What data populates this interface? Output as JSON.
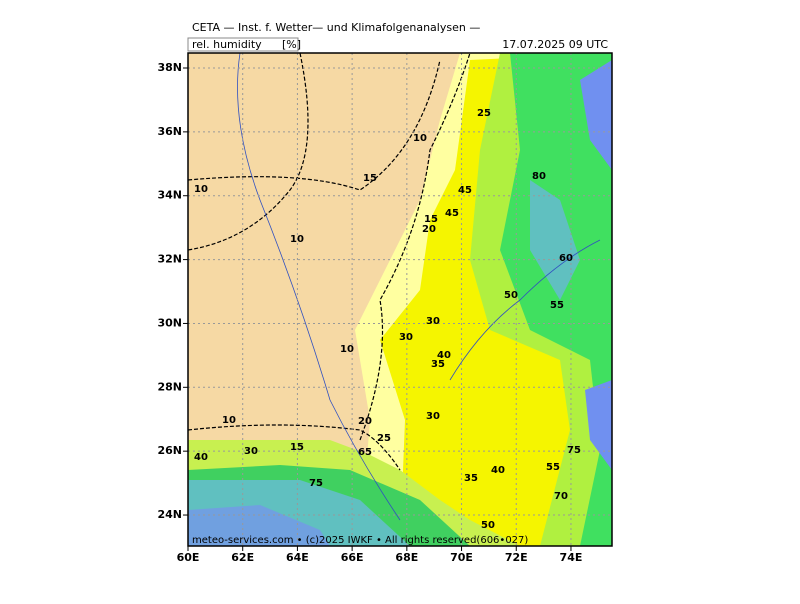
{
  "header": {
    "title": "CETA — Inst. f. Wetter— und Klimafolgenanalysen —",
    "variable": "rel. humidity",
    "unit": "[%]",
    "datetime": "17.07.2025 09 UTC"
  },
  "map": {
    "lonlim": [
      60,
      75.5
    ],
    "latlim": [
      23.03,
      38.47
    ],
    "lon_ticks": [
      {
        "value": 60,
        "label": "60E"
      },
      {
        "value": 62,
        "label": "62E"
      },
      {
        "value": 64,
        "label": "64E"
      },
      {
        "value": 66,
        "label": "66E"
      },
      {
        "value": 68,
        "label": "68E"
      },
      {
        "value": 70,
        "label": "70E"
      },
      {
        "value": 72,
        "label": "72E"
      },
      {
        "value": 74,
        "label": "74E"
      }
    ],
    "lat_ticks": [
      {
        "value": 24,
        "label": "24N"
      },
      {
        "value": 26,
        "label": "26N"
      },
      {
        "value": 28,
        "label": "28N"
      },
      {
        "value": 30,
        "label": "30N"
      },
      {
        "value": 32,
        "label": "32N"
      },
      {
        "value": 34,
        "label": "34N"
      },
      {
        "value": 36,
        "label": "36N"
      },
      {
        "value": 38,
        "label": "38N"
      }
    ],
    "contour_labels": [
      10,
      10,
      10,
      10,
      10,
      15,
      15,
      15,
      20,
      20,
      25,
      25,
      30,
      30,
      30,
      30,
      35,
      35,
      40,
      40,
      40,
      45,
      45,
      50,
      50,
      55,
      55,
      60,
      65,
      70,
      75,
      75,
      80
    ],
    "footer": "meteo-services.com • (c)2025 IWKF • All rights reserved(606•027)"
  }
}
